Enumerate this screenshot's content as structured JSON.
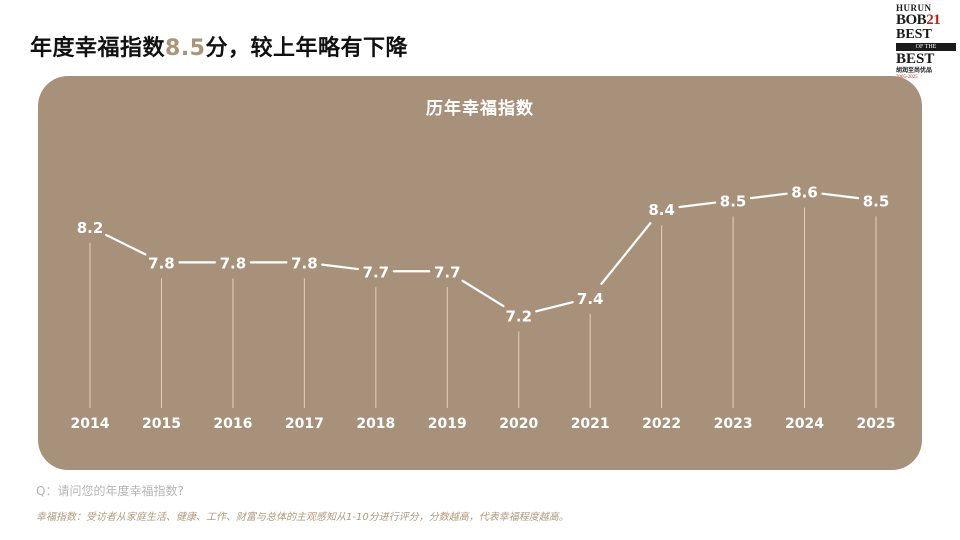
{
  "headline": {
    "prefix": "年度幸福指数",
    "value": "8.5",
    "suffix": "分，较上年略有下降"
  },
  "logo": {
    "line1": "HURUN",
    "line2a": "BOB",
    "line2b": "21",
    "line3": "BEST",
    "line4": "OF THE",
    "line5": "BEST",
    "line6": "胡润至尚优品",
    "line7": "2005-2025"
  },
  "chart_data": {
    "type": "line",
    "title": "历年幸福指数",
    "x": [
      "2014",
      "2015",
      "2016",
      "2017",
      "2018",
      "2019",
      "2020",
      "2021",
      "2022",
      "2023",
      "2024",
      "2025"
    ],
    "values": [
      8.2,
      7.8,
      7.8,
      7.8,
      7.7,
      7.7,
      7.2,
      7.4,
      8.4,
      8.5,
      8.6,
      8.5
    ],
    "data_labels": [
      "8.2",
      "7.8",
      "7.8",
      "7.8",
      "7.7",
      "7.7",
      "7.2",
      "7.4",
      "8.4",
      "8.5",
      "8.6",
      "8.5"
    ],
    "ylim": [
      6.0,
      9.0
    ],
    "grid": false,
    "legend": "none",
    "colors": {
      "background": "#a8917a",
      "line": "#ffffff",
      "text": "#ffffff",
      "drop_line": "#e8d8c4"
    }
  },
  "footer": {
    "question": "Q：请问您的年度幸福指数?",
    "note": "幸福指数：受访者从家庭生活、健康、工作、财富与总体的主观感知从1-10分进行评分，分数越高，代表幸福程度越高。"
  }
}
